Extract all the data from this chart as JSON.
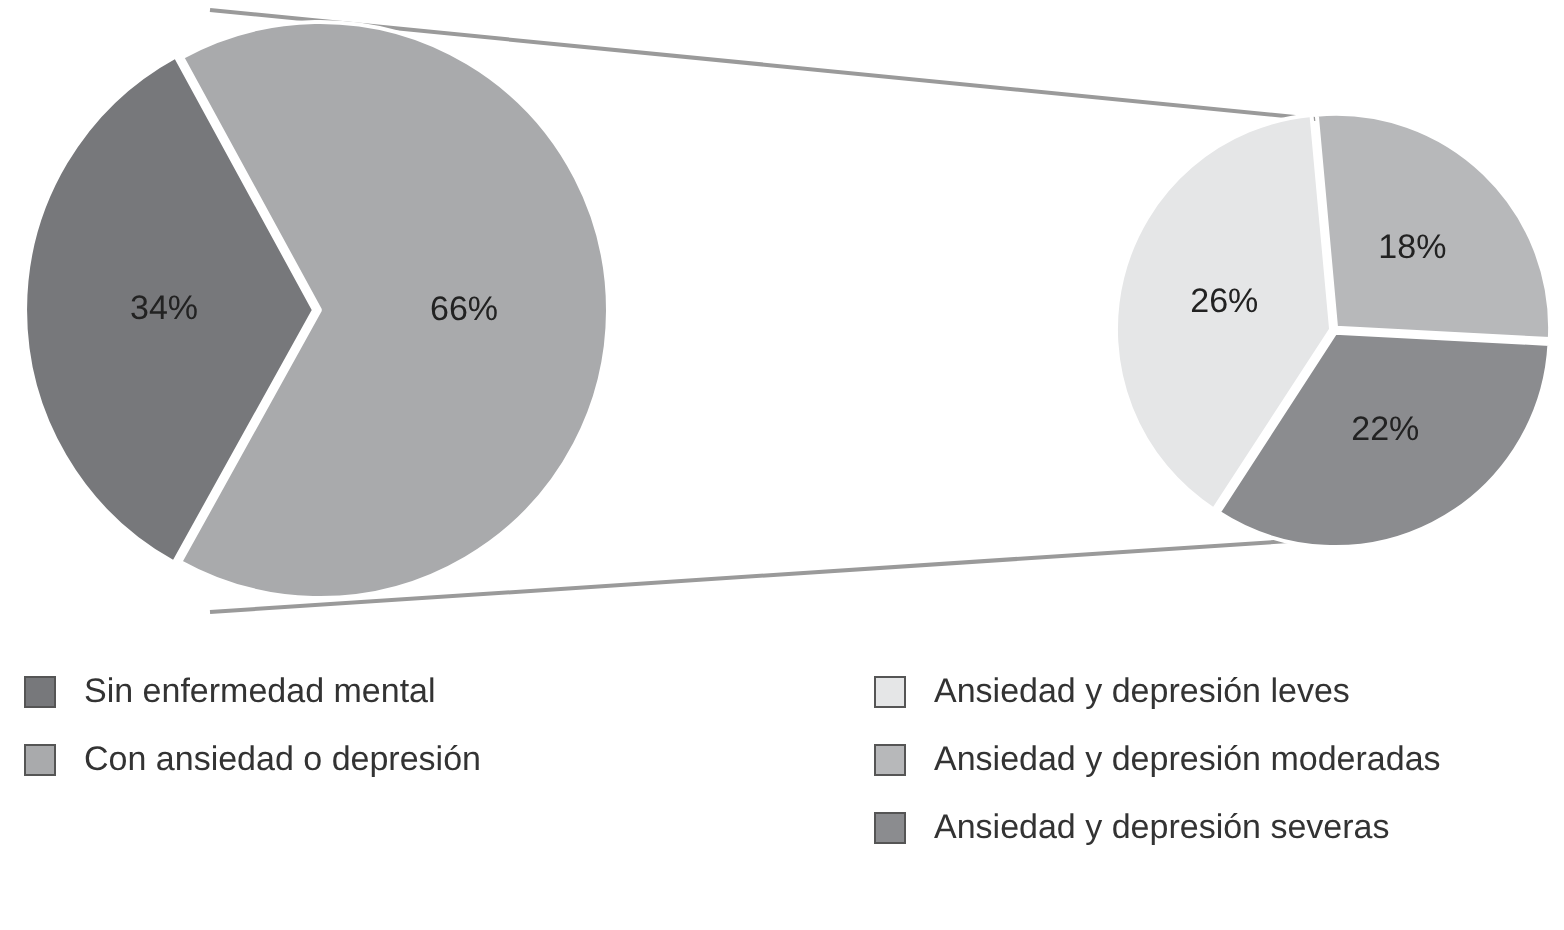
{
  "chart_data": [
    {
      "type": "pie",
      "categories": [
        "Sin enfermedad mental",
        "Con ansiedad o depresión"
      ],
      "values": [
        34,
        66
      ],
      "colors": [
        "#77787b",
        "#a9aaac"
      ],
      "value_labels": [
        "34%",
        "66%"
      ],
      "legend": "bottom"
    },
    {
      "type": "pie",
      "categories": [
        "Ansiedad y depresión leves",
        "Ansiedad y depresión moderadas",
        "Ansiedad y depresión severas"
      ],
      "values": [
        26,
        18,
        22
      ],
      "colors": [
        "#e5e6e7",
        "#b7b8ba",
        "#8b8c8f"
      ],
      "value_labels": [
        "26%",
        "18%",
        "22%"
      ],
      "legend": "bottom"
    }
  ]
}
